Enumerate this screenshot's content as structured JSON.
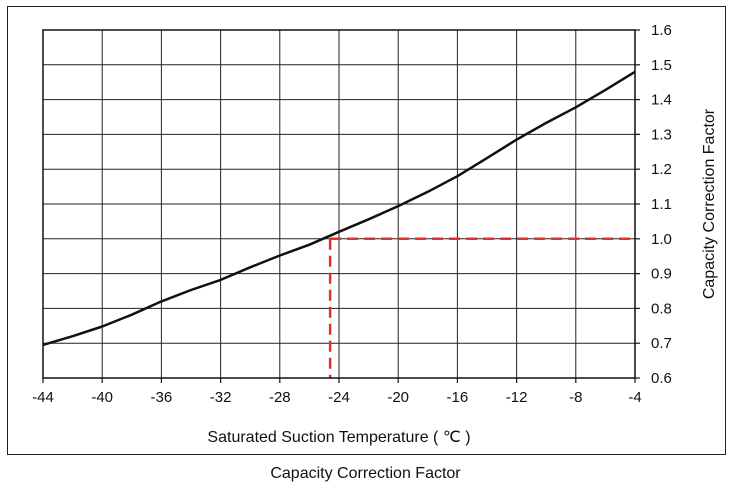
{
  "caption": "Capacity Correction Factor",
  "chart_data": {
    "type": "line",
    "title": "",
    "xlabel": "Saturated Suction Temperature ( ℃ )",
    "ylabel": "Capacity Correction Factor",
    "xlim": [
      -44,
      -4
    ],
    "ylim": [
      0.6,
      1.6
    ],
    "x_ticks": [
      -44,
      -40,
      -36,
      -32,
      -28,
      -24,
      -20,
      -16,
      -12,
      -8,
      -4
    ],
    "x_tick_labels": [
      "-44",
      "-40",
      "-36",
      "-32",
      "-28",
      "-24",
      "-20",
      "-16",
      "-12",
      "-8",
      "-4"
    ],
    "y_ticks": [
      0.6,
      0.7,
      0.8,
      0.9,
      1.0,
      1.1,
      1.2,
      1.3,
      1.4,
      1.5,
      1.6
    ],
    "y_tick_labels": [
      "0.6",
      "0.7",
      "0.8",
      "0.9",
      "1.0",
      "1.1",
      "1.2",
      "1.3",
      "1.4",
      "1.5",
      "1.6"
    ],
    "y_axis_side": "right",
    "grid": true,
    "series": [
      {
        "x": [
          -44,
          -42,
          -40,
          -38,
          -36,
          -34,
          -32,
          -30,
          -28,
          -26,
          -24,
          -22,
          -20,
          -18,
          -16,
          -14,
          -12,
          -10,
          -8,
          -6,
          -4
        ],
        "y": [
          0.695,
          0.72,
          0.748,
          0.782,
          0.82,
          0.853,
          0.882,
          0.918,
          0.952,
          0.983,
          1.02,
          1.056,
          1.094,
          1.135,
          1.18,
          1.232,
          1.285,
          1.333,
          1.378,
          1.428,
          1.48
        ],
        "color": "#111111"
      }
    ],
    "reference_lines": {
      "x": -24.6,
      "y": 1.0,
      "color": "#e03030",
      "style": "dashed"
    }
  }
}
